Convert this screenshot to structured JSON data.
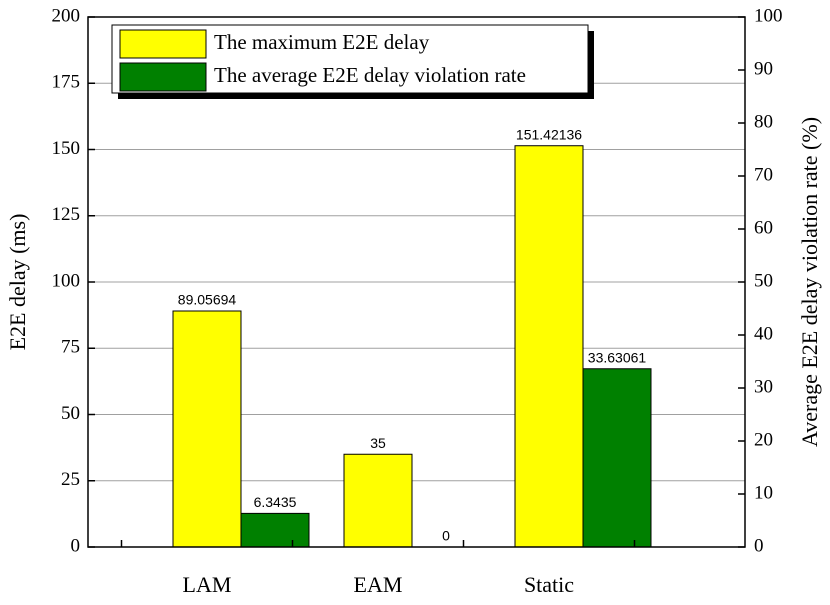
{
  "chart_data": {
    "type": "bar",
    "y_label": "E2E delay (ms)",
    "y2_label": "Average E2E delay violation rate (%)",
    "categories": [
      "LAM",
      "EAM",
      "Static"
    ],
    "series": [
      {
        "name": "The maximum E2E delay",
        "color": "#ffff00",
        "values": [
          89.05694,
          35,
          151.42136
        ]
      },
      {
        "name": "The average E2E delay violation rate",
        "color": "#008000",
        "axis": "y2",
        "values": [
          6.3435,
          0,
          33.63061
        ]
      }
    ],
    "ylim": [
      0,
      200
    ],
    "yticks": [
      0,
      25,
      50,
      75,
      100,
      125,
      150,
      175,
      200
    ],
    "y2lim": [
      0,
      100
    ],
    "y2ticks": [
      0,
      10,
      20,
      30,
      40,
      50,
      60,
      70,
      80,
      90,
      100
    ],
    "grid": true,
    "legend": "top-left"
  }
}
